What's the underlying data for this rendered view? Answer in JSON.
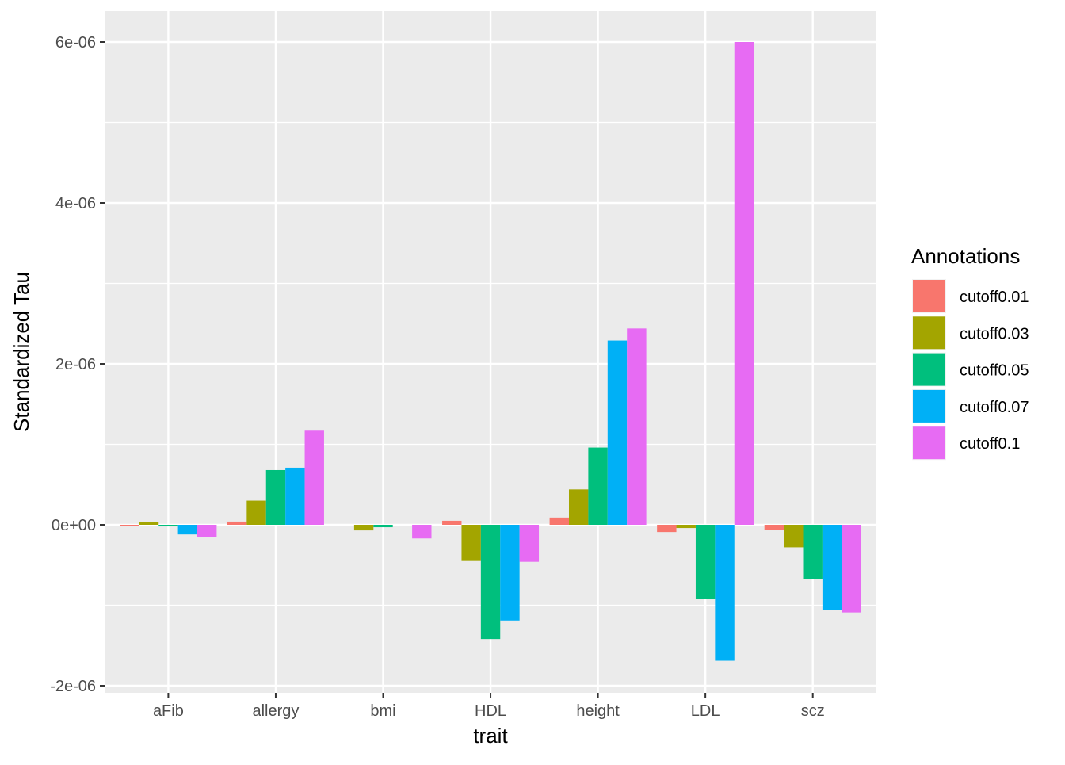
{
  "chart_data": {
    "type": "bar",
    "xlabel": "trait",
    "ylabel": "Standardized Tau",
    "categories": [
      "aFib",
      "allergy",
      "bmi",
      "HDL",
      "height",
      "LDL",
      "scz"
    ],
    "ylim": [
      -2.1e-06,
      6.3e-06
    ],
    "yticks": [
      -2e-06,
      0,
      2e-06,
      4e-06,
      6e-06
    ],
    "ytick_labels": [
      "-2e-06",
      "0e+00",
      "2e-06",
      "4e-06",
      "6e-06"
    ],
    "grid": true,
    "legend": {
      "title": "Annotations",
      "position": "right"
    },
    "series": [
      {
        "name": "cutoff0.01",
        "color": "#F8766D",
        "values": [
          -1e-08,
          4e-08,
          0.0,
          5e-08,
          9e-08,
          -9e-08,
          -6e-08
        ]
      },
      {
        "name": "cutoff0.03",
        "color": "#A3A500",
        "values": [
          3e-08,
          3e-07,
          -7e-08,
          -4.5e-07,
          4.4e-07,
          -4e-08,
          -2.8e-07
        ]
      },
      {
        "name": "cutoff0.05",
        "color": "#00BF7D",
        "values": [
          -2e-08,
          6.8e-07,
          -3e-08,
          -1.42e-06,
          9.6e-07,
          -9.2e-07,
          -6.7e-07
        ]
      },
      {
        "name": "cutoff0.07",
        "color": "#00B0F6",
        "values": [
          -1.2e-07,
          7.1e-07,
          0.0,
          -1.19e-06,
          2.29e-06,
          -1.69e-06,
          -1.06e-06
        ]
      },
      {
        "name": "cutoff0.1",
        "color": "#E76BF3",
        "values": [
          -1.5e-07,
          1.17e-06,
          -1.7e-07,
          -4.6e-07,
          2.44e-06,
          6e-06,
          -1.09e-06
        ]
      }
    ]
  }
}
